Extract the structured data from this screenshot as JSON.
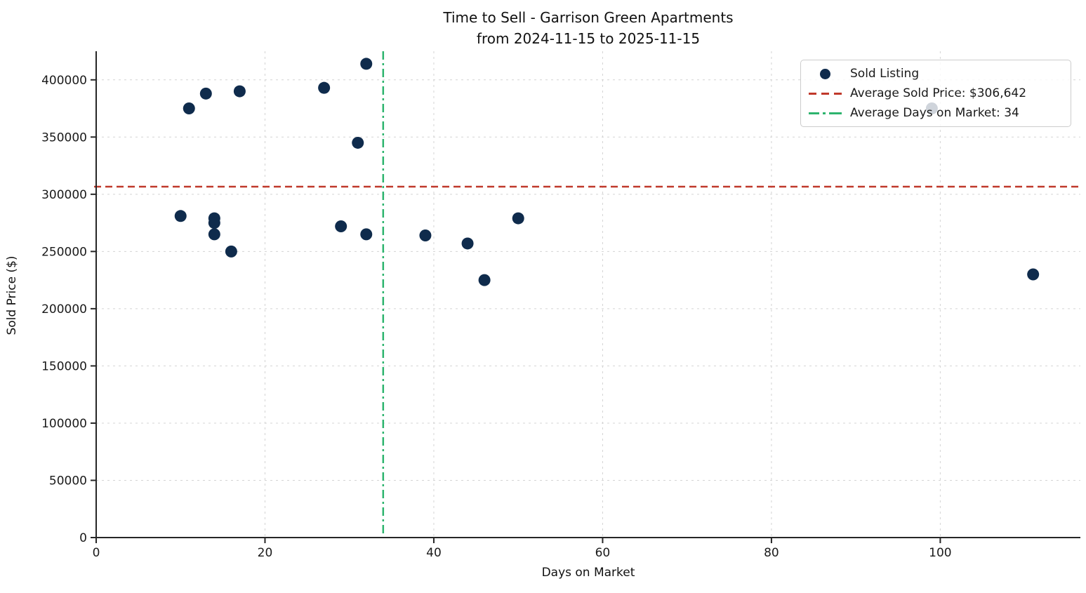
{
  "chart_data": {
    "type": "scatter",
    "title": "Time to Sell - Garrison Green Apartments",
    "subtitle": "from 2024-11-15 to 2025-11-15",
    "xlabel": "Days on Market",
    "ylabel": "Sold Price ($)",
    "xlim": [
      0,
      116.6
    ],
    "ylim": [
      0,
      425000
    ],
    "x_ticks": [
      0,
      20,
      40,
      60,
      80,
      100
    ],
    "y_ticks": [
      0,
      50000,
      100000,
      150000,
      200000,
      250000,
      300000,
      350000,
      400000
    ],
    "grid": true,
    "legend_position": "upper right",
    "background_color": "#ffffff",
    "series": [
      {
        "name": "Sold Listing",
        "type": "scatter",
        "color": "#0f2b4c",
        "points": [
          [
            10,
            281000
          ],
          [
            11,
            375000
          ],
          [
            13,
            388000
          ],
          [
            14,
            279000
          ],
          [
            14,
            275000
          ],
          [
            14,
            265000
          ],
          [
            16,
            250000
          ],
          [
            17,
            390000
          ],
          [
            27,
            393000
          ],
          [
            29,
            272000
          ],
          [
            31,
            345000
          ],
          [
            32,
            414000
          ],
          [
            32,
            265000
          ],
          [
            39,
            264000
          ],
          [
            44,
            257000
          ],
          [
            46,
            225000
          ],
          [
            50,
            279000
          ],
          [
            99,
            375000
          ],
          [
            111,
            230000
          ]
        ]
      },
      {
        "name": "Average Sold Price: $306,642",
        "type": "hline",
        "value": 306642,
        "color": "#c0392b",
        "style": "dashed"
      },
      {
        "name": "Average Days on Market: 34",
        "type": "vline",
        "value": 34,
        "color": "#2db46e",
        "style": "dashdot"
      }
    ],
    "axis_color": "#262626",
    "grid_color": "#d4d4d4",
    "tick_label_color": "#1a1a1a"
  }
}
